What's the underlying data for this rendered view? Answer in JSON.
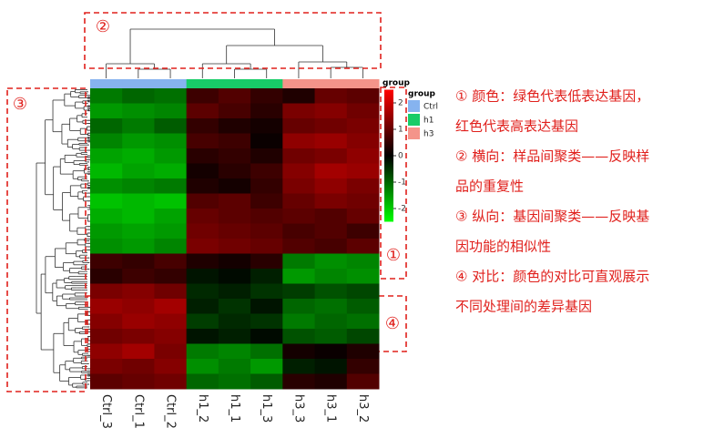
{
  "chart_data": {
    "type": "heatmap",
    "columns": [
      "Ctrl_3",
      "Ctrl_1",
      "Ctrl_2",
      "h1_2",
      "h1_1",
      "h1_3",
      "h3_3",
      "h3_1",
      "h3_2"
    ],
    "column_groups": [
      "Ctrl",
      "Ctrl",
      "Ctrl",
      "h1",
      "h1",
      "h1",
      "h3",
      "h3",
      "h3"
    ],
    "z": [
      [
        -1.2,
        -1.0,
        -1.1,
        0.6,
        0.8,
        0.5,
        0.3,
        1.0,
        0.9
      ],
      [
        -1.5,
        -1.4,
        -1.3,
        0.9,
        0.7,
        0.4,
        1.2,
        1.3,
        1.1
      ],
      [
        -1.0,
        -1.2,
        -0.9,
        0.5,
        0.3,
        0.2,
        1.0,
        1.1,
        1.2
      ],
      [
        -1.3,
        -1.5,
        -1.4,
        0.7,
        0.6,
        0.1,
        1.4,
        1.5,
        1.3
      ],
      [
        -1.6,
        -1.7,
        -1.5,
        0.4,
        0.5,
        0.3,
        1.1,
        1.2,
        1.4
      ],
      [
        -1.8,
        -1.6,
        -1.7,
        0.2,
        0.4,
        0.6,
        1.3,
        1.6,
        1.5
      ],
      [
        -1.4,
        -1.3,
        -1.2,
        0.3,
        0.2,
        0.5,
        1.2,
        1.4,
        1.2
      ],
      [
        -1.9,
        -1.8,
        -1.9,
        0.8,
        0.9,
        0.6,
        1.0,
        1.2,
        1.1
      ],
      [
        -1.7,
        -1.8,
        -1.6,
        1.0,
        0.9,
        0.8,
        0.9,
        0.8,
        1.0
      ],
      [
        -1.5,
        -1.6,
        -1.5,
        1.1,
        1.0,
        0.9,
        0.7,
        0.8,
        0.6
      ],
      [
        -1.4,
        -1.5,
        -1.3,
        1.2,
        1.1,
        1.0,
        0.8,
        0.7,
        0.9
      ],
      [
        0.6,
        0.5,
        0.7,
        0.3,
        0.2,
        0.4,
        -1.2,
        -1.4,
        -1.3
      ],
      [
        0.4,
        0.6,
        0.5,
        -0.2,
        -0.1,
        -0.3,
        -1.5,
        -1.3,
        -1.4
      ],
      [
        1.2,
        1.3,
        1.1,
        -0.4,
        -0.3,
        -0.5,
        -0.6,
        -0.8,
        -0.7
      ],
      [
        1.5,
        1.4,
        1.6,
        -0.3,
        -0.5,
        -0.2,
        -1.0,
        -1.1,
        -0.9
      ],
      [
        1.3,
        1.5,
        1.4,
        -0.6,
        -0.4,
        -0.5,
        -1.2,
        -1.0,
        -1.1
      ],
      [
        1.1,
        1.2,
        1.3,
        -0.2,
        -0.3,
        -0.1,
        -0.8,
        -0.9,
        -0.7
      ],
      [
        1.4,
        1.6,
        1.2,
        -1.2,
        -1.3,
        -1.1,
        0.2,
        0.1,
        0.3
      ],
      [
        1.2,
        1.1,
        1.3,
        -1.4,
        -1.2,
        -1.5,
        -0.3,
        -0.2,
        0.5
      ],
      [
        0.9,
        1.0,
        1.1,
        -1.0,
        -1.1,
        -0.9,
        0.4,
        0.3,
        0.8
      ]
    ],
    "colorscale": [
      "#00ff00",
      "#000000",
      "#ff0000"
    ],
    "clim": [
      -2.5,
      2.5
    ],
    "cticks": [
      2,
      1,
      0,
      -1,
      -2
    ],
    "group_title": "group",
    "legend": {
      "title": "group",
      "groups": [
        {
          "name": "Ctrl",
          "color": "#86b3ef"
        },
        {
          "name": "h1",
          "color": "#18cc68"
        },
        {
          "name": "h3",
          "color": "#f4948a"
        }
      ]
    },
    "markers": [
      "①",
      "②",
      "③",
      "④"
    ],
    "notes": [
      "① 颜色：绿色代表低表达基因，",
      "红色代表高表达基因",
      "② 横向：样品间聚类——反映样",
      "品的重复性",
      "③ 纵向：基因间聚类——反映基",
      "因功能的相似性",
      "④ 对比：颜色的对比可直观展示",
      "不同处理间的差异基因"
    ]
  }
}
